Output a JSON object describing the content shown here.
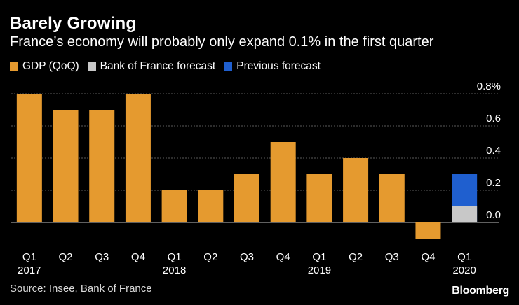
{
  "title": "Barely Growing",
  "subtitle": "France’s economy will probably only expand 0.1% in the first quarter",
  "legend": [
    {
      "label": "GDP (QoQ)",
      "color": "#E59A2F"
    },
    {
      "label": "Bank of France forecast",
      "color": "#C8C8C8"
    },
    {
      "label": "Previous forecast",
      "color": "#1F5FCF"
    }
  ],
  "source": "Source: Insee, Bank of France",
  "logo": "Bloomberg",
  "chart_data": {
    "type": "bar",
    "title": "Barely Growing",
    "categories": [
      "Q1 2017",
      "Q2 2017",
      "Q3 2017",
      "Q4 2017",
      "Q1 2018",
      "Q2 2018",
      "Q3 2018",
      "Q4 2018",
      "Q1 2019",
      "Q2 2019",
      "Q3 2019",
      "Q4 2019",
      "Q1 2020"
    ],
    "x_tick_labels": [
      {
        "quarter": "Q1",
        "year": "2017"
      },
      {
        "quarter": "Q2",
        "year": ""
      },
      {
        "quarter": "Q3",
        "year": ""
      },
      {
        "quarter": "Q4",
        "year": ""
      },
      {
        "quarter": "Q1",
        "year": "2018"
      },
      {
        "quarter": "Q2",
        "year": ""
      },
      {
        "quarter": "Q3",
        "year": ""
      },
      {
        "quarter": "Q4",
        "year": ""
      },
      {
        "quarter": "Q1",
        "year": "2019"
      },
      {
        "quarter": "Q2",
        "year": ""
      },
      {
        "quarter": "Q3",
        "year": ""
      },
      {
        "quarter": "Q4",
        "year": ""
      },
      {
        "quarter": "Q1",
        "year": "2020"
      }
    ],
    "series": [
      {
        "name": "GDP (QoQ)",
        "color": "#E59A2F",
        "values": [
          0.8,
          0.7,
          0.7,
          0.8,
          0.2,
          0.2,
          0.3,
          0.5,
          0.3,
          0.4,
          0.3,
          -0.1,
          null
        ]
      },
      {
        "name": "Bank of France forecast",
        "color": "#C8C8C8",
        "values": [
          null,
          null,
          null,
          null,
          null,
          null,
          null,
          null,
          null,
          null,
          null,
          null,
          0.1
        ]
      },
      {
        "name": "Previous forecast",
        "color": "#1F5FCF",
        "values": [
          null,
          null,
          null,
          null,
          null,
          null,
          null,
          null,
          null,
          null,
          null,
          null,
          0.3
        ]
      }
    ],
    "ylim": [
      -0.1,
      0.8
    ],
    "y_ticks": [
      0.0,
      0.2,
      0.4,
      0.6,
      0.8
    ],
    "y_tick_labels": [
      "0.0",
      "0.2",
      "0.4",
      "0.6",
      "0.8%"
    ],
    "xlabel": "",
    "ylabel": ""
  }
}
